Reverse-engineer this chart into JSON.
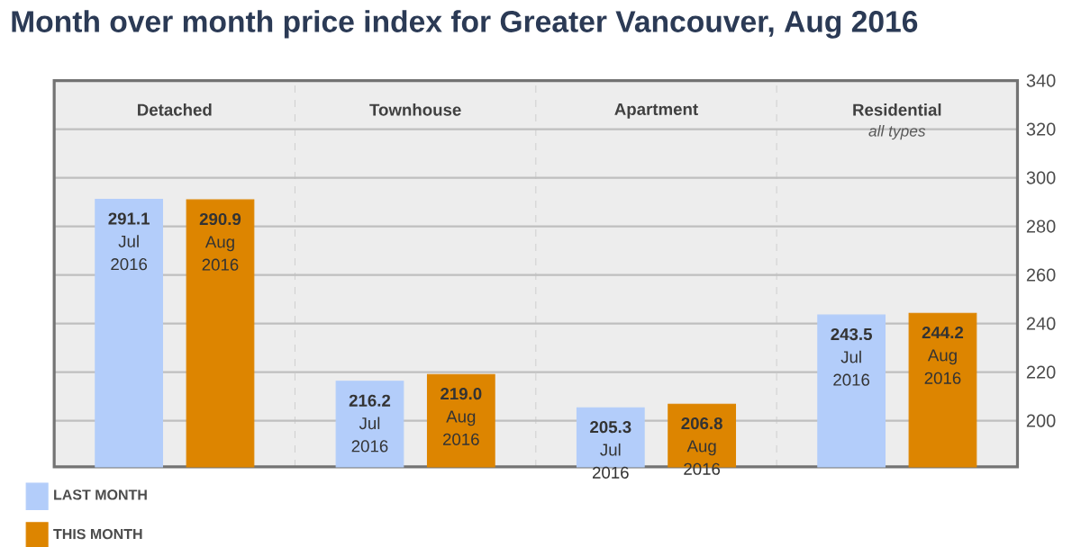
{
  "chart_data": {
    "type": "bar",
    "title": "Month over month price index for Greater Vancouver, Aug 2016",
    "categories": [
      "Detached",
      "Townhouse",
      "Apartment",
      "Residential"
    ],
    "annotations": [
      "all types"
    ],
    "series": [
      {
        "name": "LAST MONTH",
        "color": "#b3cdfa",
        "values": [
          291.1,
          216.2,
          205.3,
          243.5
        ],
        "value_labels": [
          "**291.1** Jul 2016",
          "**216.2** Jul 2016",
          "**205.3** Jul 2016",
          "**243.5** Jul 2016"
        ]
      },
      {
        "name": "THIS MONTH",
        "color": "#dd8500",
        "values": [
          290.9,
          219.0,
          206.8,
          244.2
        ],
        "value_labels": [
          "**290.9** Aug 2016",
          "**219.0** Aug 2016",
          "**206.8** Aug 2016",
          "**244.2** Aug 2016"
        ]
      }
    ],
    "ylim": [
      181,
      340
    ],
    "yticks": [
      200,
      220,
      240,
      260,
      280,
      300,
      320,
      340
    ],
    "grid": true,
    "legend": "bottom left"
  }
}
